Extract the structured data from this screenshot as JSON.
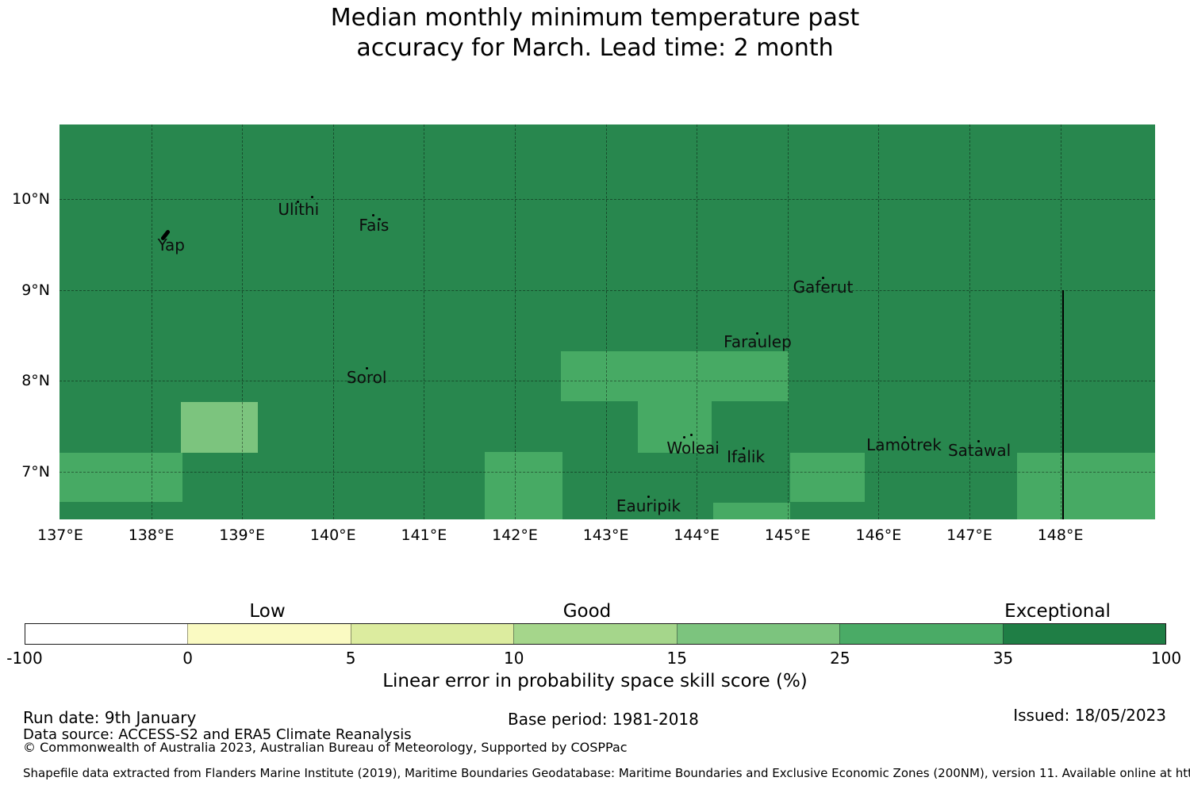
{
  "title": {
    "line1": "Median monthly minimum temperature past",
    "line2": "accuracy for March. Lead time: 2 month"
  },
  "chart_data": {
    "type": "heatmap",
    "subject": "seasonal forecast skill map, Yap region (Federated States of Micronesia)",
    "extent": {
      "lon": [
        136.99,
        149.05
      ],
      "lat": [
        6.48,
        10.82
      ]
    },
    "x_ticks": [
      {
        "lon": 137,
        "label": "137°E"
      },
      {
        "lon": 138,
        "label": "138°E"
      },
      {
        "lon": 139,
        "label": "139°E"
      },
      {
        "lon": 140,
        "label": "140°E"
      },
      {
        "lon": 141,
        "label": "141°E"
      },
      {
        "lon": 142,
        "label": "142°E"
      },
      {
        "lon": 143,
        "label": "143°E"
      },
      {
        "lon": 144,
        "label": "144°E"
      },
      {
        "lon": 145,
        "label": "145°E"
      },
      {
        "lon": 146,
        "label": "146°E"
      },
      {
        "lon": 147,
        "label": "147°E"
      },
      {
        "lon": 148,
        "label": "148°E"
      }
    ],
    "y_ticks": [
      {
        "lat": 10,
        "label": "10°N"
      },
      {
        "lat": 9,
        "label": "9°N"
      },
      {
        "lat": 8,
        "label": "8°N"
      },
      {
        "lat": 7,
        "label": "7°N"
      }
    ],
    "background_bin": "35-100",
    "bin_colors": {
      "35-100": "#28874e",
      "25-35": "#47aa64",
      "15-25": "#7cc47e",
      "10-15": "#a5d68b",
      "5-10": "#dcec9f",
      "0-5": "#fafac2",
      "-100-0": "#ffffff"
    },
    "regions": [
      {
        "bin": "15-25",
        "lon": [
          138.33,
          139.17
        ],
        "lat": [
          7.21,
          7.77
        ]
      },
      {
        "bin": "25-35",
        "lon": [
          142.51,
          145.01
        ],
        "lat": [
          7.78,
          8.33
        ]
      },
      {
        "bin": "25-35",
        "lon": [
          143.35,
          144.16
        ],
        "lat": [
          7.21,
          7.78
        ]
      },
      {
        "bin": "25-35",
        "lon": [
          136.99,
          138.34
        ],
        "lat": [
          6.67,
          7.21
        ]
      },
      {
        "bin": "25-35",
        "lon": [
          141.67,
          142.52
        ],
        "lat": [
          6.48,
          7.22
        ]
      },
      {
        "bin": "25-35",
        "lon": [
          144.18,
          145.03
        ],
        "lat": [
          6.48,
          6.66
        ]
      },
      {
        "bin": "25-35",
        "lon": [
          145.03,
          145.85
        ],
        "lat": [
          6.67,
          7.21
        ]
      },
      {
        "bin": "25-35",
        "lon": [
          147.52,
          149.05
        ],
        "lat": [
          6.48,
          7.21
        ]
      }
    ],
    "eez_boundary": {
      "lon": 148.03,
      "lat_from": 6.48,
      "lat_to": 9.0
    },
    "islands": [
      {
        "name": "Yap",
        "label_at": [
          138.22,
          9.49
        ],
        "markers": [],
        "glyph": [
          138.15,
          9.61
        ]
      },
      {
        "name": "Ulithi",
        "label_at": [
          139.62,
          9.89
        ],
        "markers": [
          [
            139.61,
            9.97
          ],
          [
            139.77,
            10.02
          ]
        ]
      },
      {
        "name": "Fais",
        "label_at": [
          140.45,
          9.71
        ],
        "markers": [
          [
            140.44,
            9.82
          ],
          [
            140.51,
            9.78
          ]
        ]
      },
      {
        "name": "Sorol",
        "label_at": [
          140.37,
          8.04
        ],
        "markers": [
          [
            140.37,
            8.14
          ]
        ]
      },
      {
        "name": "Gaferut",
        "label_at": [
          145.39,
          9.03
        ],
        "markers": [
          [
            145.39,
            9.13
          ]
        ]
      },
      {
        "name": "Faraulep",
        "label_at": [
          144.67,
          8.43
        ],
        "markers": [
          [
            144.67,
            8.52
          ]
        ]
      },
      {
        "name": "Woleai",
        "label_at": [
          143.96,
          7.26
        ],
        "markers": [
          [
            143.86,
            7.38
          ],
          [
            143.94,
            7.41
          ]
        ]
      },
      {
        "name": "Ifalik",
        "label_at": [
          144.54,
          7.17
        ],
        "markers": [
          [
            144.52,
            7.26
          ]
        ]
      },
      {
        "name": "Eauripik",
        "label_at": [
          143.47,
          6.63
        ],
        "markers": [
          [
            143.47,
            6.73
          ]
        ]
      },
      {
        "name": "Lamotrek",
        "label_at": [
          146.28,
          7.3
        ],
        "markers": [
          [
            146.29,
            7.38
          ]
        ]
      },
      {
        "name": "Satawal",
        "label_at": [
          147.11,
          7.24
        ],
        "markers": [
          [
            147.1,
            7.34
          ]
        ]
      }
    ],
    "colorbar": {
      "title": "Linear error in probability space skill score (%)",
      "ticks": [
        "-100",
        "0",
        "5",
        "10",
        "15",
        "25",
        "35",
        "100"
      ],
      "segments": [
        {
          "range": "-100 to 0",
          "color": "#ffffff"
        },
        {
          "range": "0 to 5",
          "color": "#fafac2"
        },
        {
          "range": "5 to 10",
          "color": "#dcec9f"
        },
        {
          "range": "10 to 15",
          "color": "#a5d68b"
        },
        {
          "range": "15 to 25",
          "color": "#7cc47e"
        },
        {
          "range": "25 to 35",
          "color": "#4aab66"
        },
        {
          "range": "35 to 100",
          "color": "#1f7e45"
        }
      ],
      "categories": [
        {
          "label": "Low"
        },
        {
          "label": "Good"
        },
        {
          "label": "Exceptional"
        }
      ]
    }
  },
  "footer": {
    "run_date": "Run date: 9th January",
    "base_period": "Base period: 1981-2018",
    "issued": "Issued: 18/05/2023",
    "data_source": "Data source: ACCESS-S2 and ERA5 Climate Reanalysis",
    "copyright": "© Commonwealth of Australia 2023, Australian Bureau of Meteorology, Supported by COSPPac",
    "shapefile_note": "Shapefile data extracted from Flanders Marine Institute (2019), Maritime Boundaries Geodatabase: Maritime Boundaries and Exclusive Economic Zones (200NM), version 11. Available online at http://www.marineregions.org/."
  }
}
